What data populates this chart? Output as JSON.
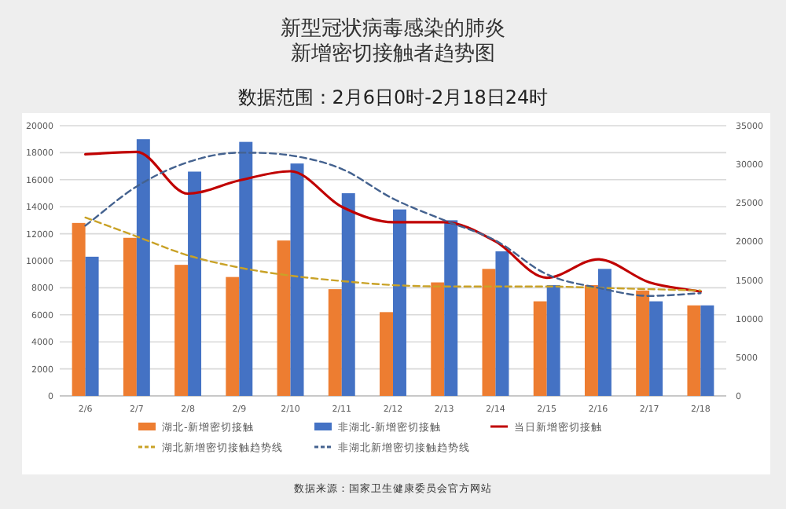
{
  "chart_data": {
    "type": "bar",
    "title": "新型冠状病毒感染的肺炎",
    "subtitle": "新增密切接触者趋势图",
    "categories": [
      "2/6",
      "2/7",
      "2/8",
      "2/9",
      "2/10",
      "2/11",
      "2/12",
      "2/13",
      "2/14",
      "2/15",
      "2/16",
      "2/17",
      "2/18"
    ],
    "series": [
      {
        "name": "湖北-新增密切接触",
        "color": "#ed7d31",
        "values": [
          12800,
          11700,
          9700,
          8800,
          11500,
          7900,
          6200,
          8400,
          9400,
          7000,
          8200,
          7800,
          6700
        ]
      },
      {
        "name": "非湖北-新增密切接触",
        "color": "#4472c4",
        "values": [
          10300,
          19000,
          16600,
          18800,
          17200,
          15000,
          13800,
          13000,
          10700,
          8200,
          9400,
          7000,
          6700
        ]
      },
      {
        "name": "当日新增密切接触",
        "type": "line",
        "axis": "y2",
        "color": "#c00000",
        "values": [
          31300,
          31600,
          26200,
          27900,
          29100,
          24500,
          22500,
          22500,
          20000,
          15300,
          17700,
          14700,
          13500
        ]
      },
      {
        "name": "湖北新增密切接触趋势线",
        "type": "line",
        "line_style": "dashed",
        "color": "#c9a227",
        "values": [
          13200,
          11800,
          10400,
          9500,
          8900,
          8500,
          8200,
          8100,
          8100,
          8100,
          8000,
          7900,
          7800
        ]
      },
      {
        "name": "非湖北新增密切接触趋势线",
        "type": "line",
        "line_style": "dashed",
        "color": "#44628f",
        "values": [
          12600,
          15500,
          17300,
          18000,
          17800,
          16800,
          14600,
          13000,
          11500,
          9000,
          8000,
          7400,
          7600
        ]
      }
    ],
    "ylim": [
      0,
      20000
    ],
    "yticks": [
      0,
      2000,
      4000,
      6000,
      8000,
      10000,
      12000,
      14000,
      16000,
      18000,
      20000
    ],
    "y2lim": [
      0,
      35000
    ],
    "y2ticks": [
      0,
      5000,
      10000,
      15000,
      20000,
      25000,
      30000,
      35000
    ],
    "grid": "y",
    "legend": "bottom",
    "annotations": [
      "数据范围：2月6日0时-2月18日24时",
      "数据来源：国家卫生健康委员会官方网站"
    ]
  }
}
